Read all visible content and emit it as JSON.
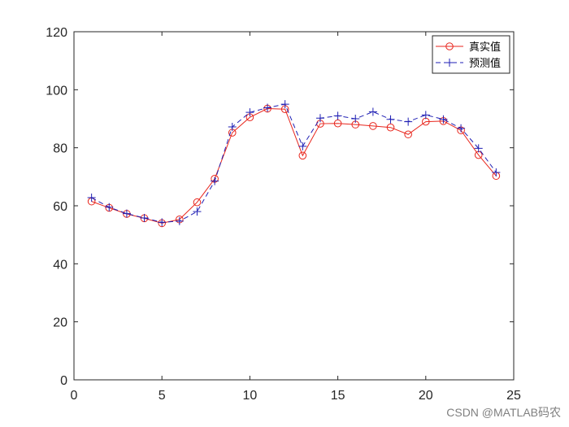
{
  "chart_data": {
    "type": "line",
    "title": "",
    "xlabel": "",
    "ylabel": "",
    "xlim": [
      0,
      25
    ],
    "ylim": [
      0,
      120
    ],
    "x_ticks": [
      0,
      5,
      10,
      15,
      20,
      25
    ],
    "y_ticks": [
      0,
      20,
      40,
      60,
      80,
      100,
      120
    ],
    "grid": false,
    "legend_position": "top-right",
    "x": [
      1,
      2,
      3,
      4,
      5,
      6,
      7,
      8,
      9,
      10,
      11,
      12,
      13,
      14,
      15,
      16,
      17,
      18,
      19,
      20,
      21,
      22,
      23,
      24
    ],
    "series": [
      {
        "name": "真实值",
        "color": "#e8261d",
        "line_style": "solid",
        "marker": "circle",
        "values": [
          61.5,
          59.3,
          57.2,
          55.7,
          54.0,
          55.3,
          61.2,
          69.3,
          85.2,
          90.5,
          93.5,
          93.3,
          77.3,
          88.3,
          88.4,
          88.0,
          87.5,
          87.0,
          84.6,
          89.0,
          89.2,
          86.0,
          77.5,
          70.3
        ]
      },
      {
        "name": "预测值",
        "color": "#1f1fb4",
        "line_style": "dashed",
        "marker": "plus",
        "values": [
          62.8,
          59.5,
          57.3,
          55.8,
          54.3,
          54.7,
          58.0,
          68.5,
          87.2,
          92.2,
          93.8,
          95.0,
          80.5,
          90.2,
          91.0,
          90.0,
          92.4,
          89.8,
          89.0,
          91.3,
          89.8,
          86.7,
          79.8,
          71.5
        ]
      }
    ]
  },
  "watermark": "CSDN @MATLAB码农"
}
